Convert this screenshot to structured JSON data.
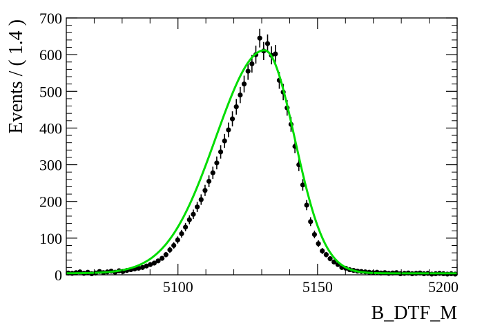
{
  "chart_data": {
    "type": "scatter",
    "title": "",
    "xlabel": "B_DTF_M",
    "ylabel": "Events / ( 1.4 )",
    "xlim": [
      5060,
      5200
    ],
    "ylim": [
      0,
      700
    ],
    "x_ticks": [
      5100,
      5150,
      5200
    ],
    "x_tick_labels": [
      "5100",
      "5150",
      "5200"
    ],
    "y_ticks": [
      0,
      100,
      200,
      300,
      400,
      500,
      600,
      700
    ],
    "y_tick_labels": [
      "0",
      "100",
      "200",
      "300",
      "400",
      "500",
      "600",
      "700"
    ],
    "grid": false,
    "colors": {
      "points": "#000000",
      "fit": "#00dd00",
      "frame": "#000000"
    },
    "series": [
      {
        "type": "scatter_errorbars",
        "x": [
          5060.7,
          5062.1,
          5063.5,
          5064.9,
          5066.3,
          5067.7,
          5069.1,
          5070.5,
          5071.9,
          5073.3,
          5074.7,
          5076.1,
          5077.5,
          5078.9,
          5080.3,
          5081.7,
          5083.1,
          5084.5,
          5085.9,
          5087.3,
          5088.7,
          5090.1,
          5091.5,
          5092.9,
          5094.3,
          5095.7,
          5097.1,
          5098.5,
          5099.9,
          5101.3,
          5102.7,
          5104.1,
          5105.5,
          5106.9,
          5108.3,
          5109.7,
          5111.1,
          5112.5,
          5113.9,
          5115.3,
          5116.7,
          5118.1,
          5119.5,
          5120.9,
          5122.3,
          5123.7,
          5125.1,
          5126.5,
          5127.9,
          5129.3,
          5130.7,
          5132.1,
          5133.5,
          5134.9,
          5136.3,
          5137.7,
          5139.1,
          5140.5,
          5141.9,
          5143.3,
          5144.7,
          5146.1,
          5147.5,
          5148.9,
          5150.3,
          5151.7,
          5153.1,
          5154.5,
          5155.9,
          5157.3,
          5158.7,
          5160.1,
          5161.5,
          5162.9,
          5164.3,
          5165.7,
          5167.1,
          5168.5,
          5169.9,
          5171.3,
          5172.7,
          5174.1,
          5175.5,
          5176.9,
          5178.3,
          5179.7,
          5181.1,
          5182.5,
          5183.9,
          5185.3,
          5186.7,
          5188.1,
          5189.5,
          5190.9,
          5192.3,
          5193.7,
          5195.1,
          5196.5,
          5197.9,
          5199.3
        ],
        "y": [
          5,
          4,
          6,
          8,
          4,
          7,
          3,
          5,
          9,
          6,
          8,
          10,
          7,
          11,
          9,
          12,
          14,
          16,
          18,
          20,
          24,
          28,
          32,
          38,
          45,
          55,
          68,
          80,
          95,
          112,
          130,
          150,
          165,
          185,
          205,
          230,
          255,
          278,
          305,
          335,
          365,
          395,
          425,
          458,
          490,
          520,
          555,
          575,
          600,
          645,
          610,
          630,
          598,
          602,
          530,
          498,
          455,
          410,
          350,
          300,
          245,
          190,
          145,
          110,
          85,
          65,
          55,
          44,
          35,
          28,
          20,
          18,
          14,
          12,
          10,
          9,
          8,
          7,
          6,
          7,
          5,
          6,
          4,
          5,
          6,
          3,
          4,
          5,
          3,
          4,
          5,
          3,
          4,
          2,
          3,
          4,
          3,
          2,
          3,
          2
        ],
        "err": [
          2.2,
          2,
          2.4,
          2.8,
          2,
          2.6,
          1.7,
          2.2,
          3,
          2.4,
          2.8,
          3.2,
          2.6,
          3.3,
          3,
          3.5,
          3.7,
          4,
          4.2,
          4.5,
          4.9,
          5.3,
          5.7,
          6.2,
          6.7,
          7.4,
          8.2,
          8.9,
          9.7,
          10.6,
          11.4,
          12.2,
          12.8,
          13.6,
          14.3,
          15.2,
          16,
          16.7,
          17.5,
          18.3,
          19.1,
          19.9,
          20.6,
          21.4,
          22.1,
          22.8,
          23.6,
          24,
          24.5,
          25.4,
          24.7,
          25.1,
          24.5,
          24.5,
          23,
          22.3,
          21.3,
          20.2,
          18.7,
          17.3,
          15.7,
          13.8,
          12,
          10.5,
          9.2,
          8.1,
          7.4,
          6.6,
          5.9,
          5.3,
          4.5,
          4.2,
          3.7,
          3.5,
          3.2,
          3,
          2.8,
          2.6,
          2.4,
          2.6,
          2.2,
          2.4,
          2,
          2.2,
          2.4,
          1.7,
          2,
          2.2,
          1.7,
          2,
          2.2,
          1.7,
          2,
          1.4,
          1.7,
          2,
          1.7,
          1.4,
          1.7,
          1.4
        ]
      },
      {
        "type": "fit_curve",
        "peak_x": 5131,
        "peak_y": 612,
        "sigma_left": 17.5,
        "sigma_right": 10.8,
        "baseline": 4
      }
    ]
  }
}
